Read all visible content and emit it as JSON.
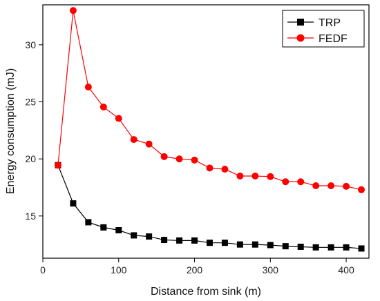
{
  "chart_data": {
    "type": "line",
    "xlabel": "Distance from sink (m)",
    "ylabel": "Energy consumption (mJ)",
    "xlim": [
      0,
      430
    ],
    "ylim": [
      11.3,
      33.5
    ],
    "x_ticks": [
      0,
      100,
      200,
      300,
      400
    ],
    "x_tick_labels": [
      "0",
      "100",
      "200",
      "300",
      "400"
    ],
    "y_ticks": [
      15,
      20,
      25,
      30
    ],
    "y_tick_labels": [
      "15",
      "20",
      "25",
      "30"
    ],
    "grid": false,
    "legend_position": "top-right",
    "x": [
      20,
      40,
      60,
      80,
      100,
      120,
      140,
      160,
      180,
      200,
      220,
      240,
      260,
      280,
      300,
      320,
      340,
      360,
      380,
      400,
      420
    ],
    "series": [
      {
        "name": "TRP",
        "color": "#000000",
        "marker": "square",
        "values": [
          19.45,
          16.1,
          14.45,
          14.0,
          13.75,
          13.3,
          13.2,
          12.9,
          12.85,
          12.85,
          12.65,
          12.65,
          12.5,
          12.5,
          12.45,
          12.35,
          12.3,
          12.25,
          12.25,
          12.25,
          12.15
        ]
      },
      {
        "name": "FEDF",
        "color": "#ff0000",
        "marker": "circle",
        "values": [
          19.45,
          33.0,
          26.3,
          24.55,
          23.55,
          21.7,
          21.3,
          20.2,
          20.0,
          19.9,
          19.2,
          19.1,
          18.5,
          18.5,
          18.45,
          18.0,
          18.0,
          17.65,
          17.65,
          17.6,
          17.3
        ]
      }
    ]
  }
}
